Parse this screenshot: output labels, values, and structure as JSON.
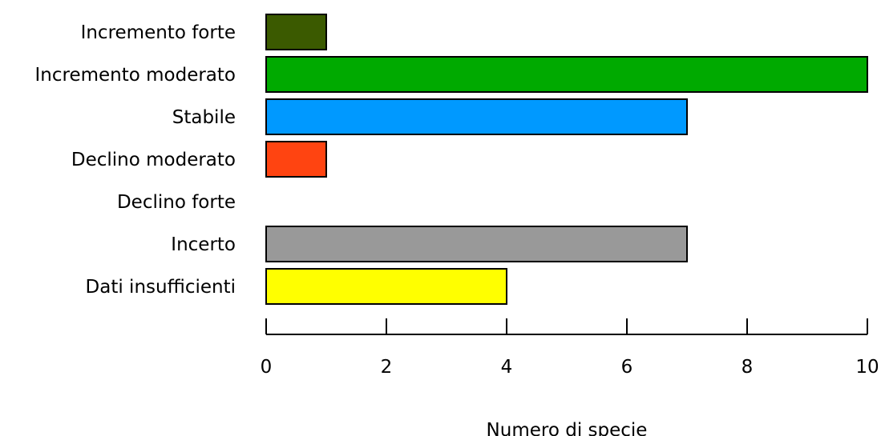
{
  "chart_data": {
    "type": "bar",
    "orientation": "horizontal",
    "categories": [
      "Incremento forte",
      "Incremento moderato",
      "Stabile",
      "Declino moderato",
      "Declino forte",
      "Incerto",
      "Dati insufficienti"
    ],
    "values": [
      1,
      10,
      7,
      1,
      0,
      7,
      4
    ],
    "colors": [
      "#3b5a00",
      "#00aa00",
      "#0099ff",
      "#ff4411",
      "#ffffff",
      "#999999",
      "#ffff00"
    ],
    "xlabel": "Numero di specie",
    "ylabel": "",
    "title": "",
    "xlim": [
      0,
      10
    ],
    "xticks": [
      0,
      2,
      4,
      6,
      8,
      10
    ],
    "grid": false,
    "legend": "none"
  }
}
